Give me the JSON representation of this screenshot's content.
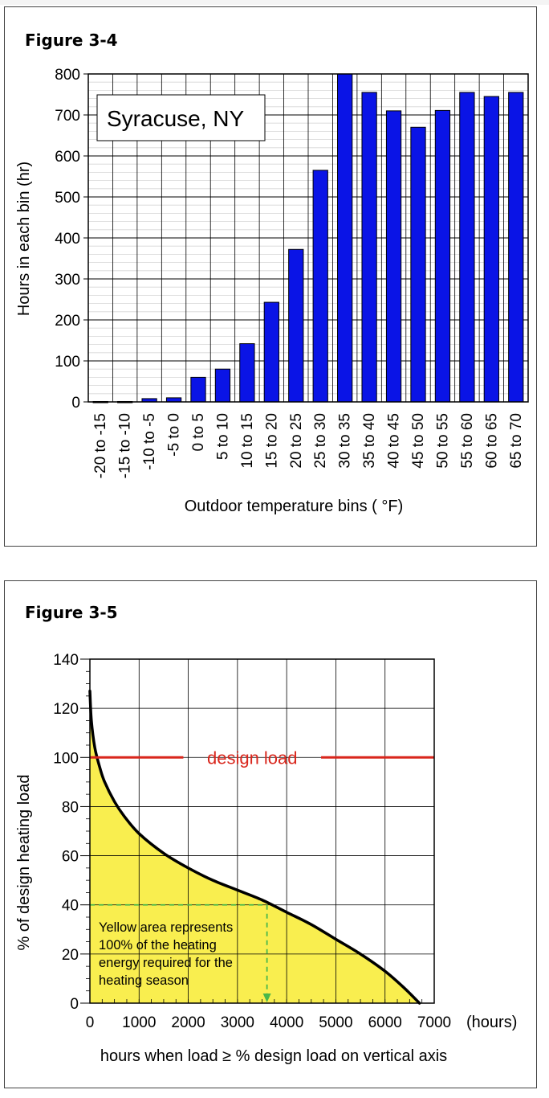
{
  "charts": [
    {
      "figure_label": "Figure 3-4",
      "chart_data": {
        "type": "bar",
        "title": "Syracuse, NY",
        "xlabel": "Outdoor temperature bins ( °F)",
        "ylabel": "Hours in each bin (hr)",
        "ylim": [
          0,
          800
        ],
        "yticks": [
          0,
          100,
          200,
          300,
          400,
          500,
          600,
          700,
          800
        ],
        "grid": true,
        "bar_color": "#0a14e6",
        "categories": [
          "-20 to -15",
          "-15 to -10",
          "-10 to -5",
          "-5 to 0",
          "0 to 5",
          "5 to 10",
          "10 to 15",
          "15 to 20",
          "20 to 25",
          "25 to 30",
          "30 to 35",
          "35 to 40",
          "40 to 45",
          "45 to 50",
          "50 to 55",
          "55 to 60",
          "60 to 65",
          "65 to 70"
        ],
        "values": [
          1,
          1,
          8,
          10,
          60,
          80,
          142,
          243,
          372,
          565,
          800,
          755,
          710,
          670,
          711,
          755,
          745,
          755
        ]
      }
    },
    {
      "figure_label": "Figure 3-5",
      "chart_data": {
        "type": "area",
        "xlabel": "hours when load ≥ % design load on vertical axis",
        "x_unit_label": "(hours)",
        "ylabel": "% of design heating load",
        "xlim": [
          0,
          7000
        ],
        "ylim": [
          0,
          140
        ],
        "xticks": [
          0,
          1000,
          2000,
          3000,
          4000,
          5000,
          6000,
          7000
        ],
        "yticks": [
          0,
          20,
          40,
          60,
          80,
          100,
          120,
          140
        ],
        "grid": true,
        "fill_color": "#f9ee4f",
        "curve": {
          "x": [
            0,
            30,
            100,
            200,
            300,
            500,
            700,
            1000,
            1500,
            2000,
            2500,
            3000,
            3500,
            4000,
            4500,
            5000,
            5500,
            6000,
            6400,
            6700
          ],
          "y": [
            127,
            115,
            104,
            96,
            90,
            82,
            76,
            69,
            61,
            55,
            50,
            46,
            42,
            37,
            32,
            26,
            20,
            13,
            6,
            0
          ]
        },
        "reference_line": {
          "label": "design load",
          "y": 100,
          "color": "#d9261c"
        },
        "marker": {
          "x": 3600,
          "y": 40,
          "color": "#4ab84a"
        },
        "annotation": [
          "Yellow area represents",
          "100% of the heating",
          "energy required for the",
          "heating season"
        ]
      }
    }
  ]
}
